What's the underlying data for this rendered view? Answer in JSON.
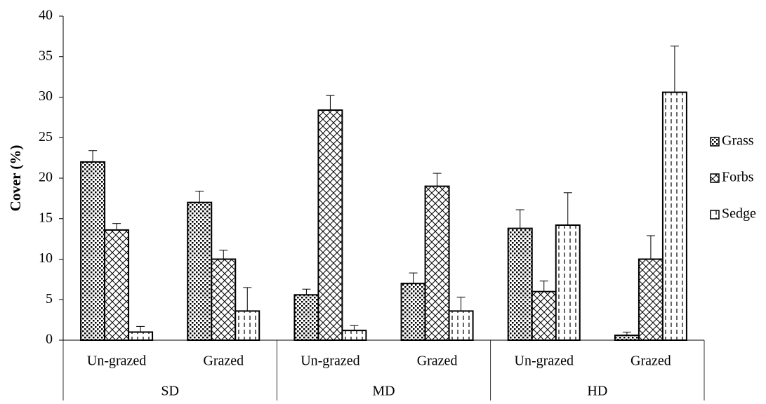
{
  "chart_data": {
    "type": "bar",
    "y_label": "Cover (%)",
    "groups": [
      "SD",
      "MD",
      "HD"
    ],
    "categories": [
      "Un-grazed",
      "Grazed",
      "Un-grazed",
      "Grazed",
      "Un-grazed",
      "Grazed"
    ],
    "series": [
      {
        "name": "Grass",
        "color": "#000000",
        "pattern": "dots",
        "values": [
          22.0,
          17.0,
          5.6,
          7.0,
          13.8,
          0.6
        ],
        "errors": [
          1.4,
          1.4,
          0.7,
          1.3,
          2.3,
          0.4
        ]
      },
      {
        "name": "Forbs",
        "color": "#000000",
        "pattern": "crosshatch",
        "values": [
          13.6,
          10.0,
          28.4,
          19.0,
          6.0,
          10.0
        ],
        "errors": [
          0.8,
          1.1,
          1.8,
          1.6,
          1.3,
          2.9
        ]
      },
      {
        "name": "Sedge",
        "color": "#000000",
        "pattern": "vdash",
        "values": [
          1.0,
          3.6,
          1.2,
          3.6,
          14.2,
          30.6
        ],
        "errors": [
          0.7,
          2.9,
          0.6,
          1.7,
          4.0,
          5.7
        ]
      }
    ],
    "ylim": [
      0,
      40
    ],
    "yticks": [
      0,
      5,
      10,
      15,
      20,
      25,
      30,
      35,
      40
    ],
    "grid": false,
    "legend": "right"
  }
}
